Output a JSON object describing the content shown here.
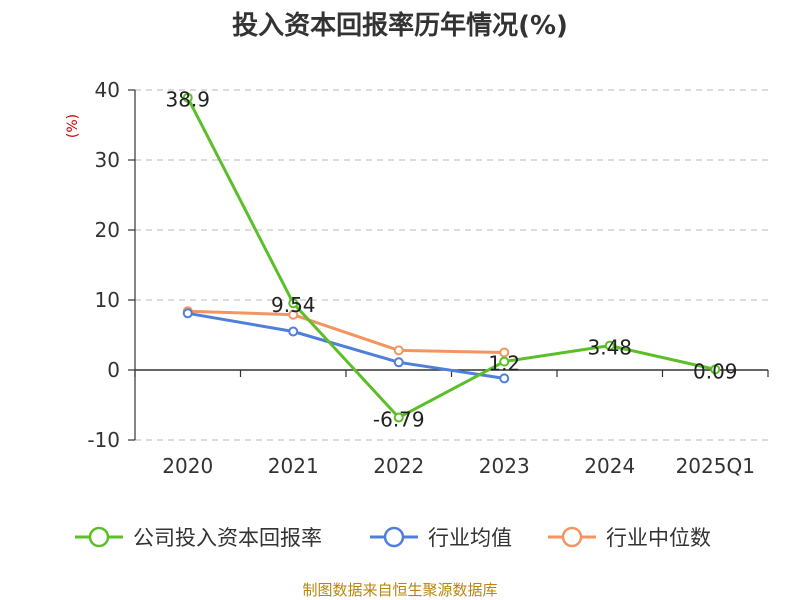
{
  "chart_data": {
    "type": "line",
    "title": "投入资本回报率历年情况(%)",
    "ylabel": "(%)",
    "categories": [
      "2020",
      "2021",
      "2022",
      "2023",
      "2024",
      "2025Q1"
    ],
    "ylim": [
      -10,
      40
    ],
    "yticks": [
      -10,
      0,
      10,
      20,
      30,
      40
    ],
    "grid": true,
    "legend_position": "bottom",
    "series": [
      {
        "name": "公司投入资本回报率",
        "color": "#5cbf2a",
        "values": [
          38.9,
          9.54,
          -6.79,
          1.2,
          3.48,
          0.09
        ],
        "labels": [
          "38.9",
          "9.54",
          "-6.79",
          "1.2",
          "3.48",
          "0.09"
        ]
      },
      {
        "name": "行业均值",
        "color": "#4f7fd9",
        "values": [
          8.1,
          5.5,
          1.1,
          -1.2,
          null,
          null
        ]
      },
      {
        "name": "行业中位数",
        "color": "#f39561",
        "values": [
          8.4,
          7.9,
          2.8,
          2.5,
          null,
          null
        ]
      }
    ],
    "source": "制图数据来自恒生聚源数据库"
  }
}
